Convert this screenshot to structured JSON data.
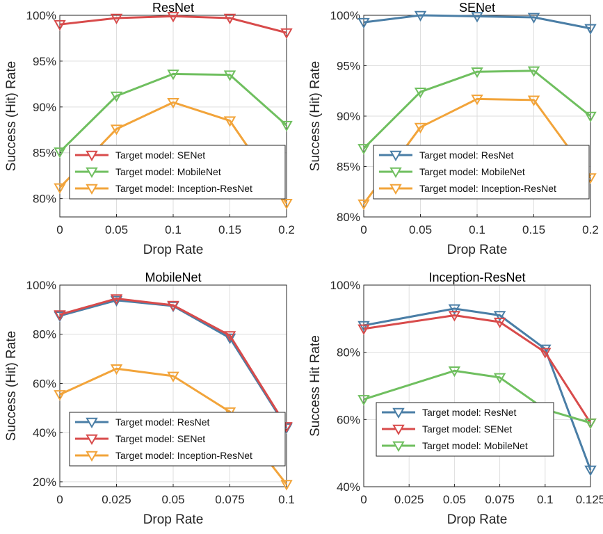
{
  "colors": {
    "resnet": "#4a7ea6",
    "senet": "#d84b4b",
    "mobilenet": "#6fbf5f",
    "inception": "#f2a43a"
  },
  "chart_data": [
    {
      "type": "line",
      "title": "ResNet",
      "xlabel": "Drop Rate",
      "ylabel": "Success (Hit) Rate",
      "x": [
        0,
        0.05,
        0.1,
        0.15,
        0.2
      ],
      "x_ticks": [
        "0",
        "0.05",
        "0.1",
        "0.15",
        "0.2"
      ],
      "xlim": [
        0,
        0.2
      ],
      "ylim": [
        78,
        100
      ],
      "y_ticks": [
        80,
        85,
        90,
        95,
        100
      ],
      "y_tick_labels": [
        "80%",
        "85%",
        "90%",
        "95%",
        "100%"
      ],
      "legend_loc": "lower-right",
      "series": [
        {
          "name": "Target model: SENet",
          "color_key": "senet",
          "values": [
            99.0,
            99.7,
            99.9,
            99.7,
            98.1
          ]
        },
        {
          "name": "Target model: MobileNet",
          "color_key": "mobilenet",
          "values": [
            85.1,
            91.2,
            93.6,
            93.5,
            88.0
          ]
        },
        {
          "name": "Target model: Inception-ResNet",
          "color_key": "inception",
          "values": [
            81.2,
            87.6,
            90.5,
            88.5,
            79.5
          ]
        }
      ]
    },
    {
      "type": "line",
      "title": "SENet",
      "xlabel": "Drop Rate",
      "ylabel": "Success (Hit) Rate",
      "x": [
        0,
        0.05,
        0.1,
        0.15,
        0.2
      ],
      "x_ticks": [
        "0",
        "0.05",
        "0.1",
        "0.15",
        "0.2"
      ],
      "xlim": [
        0,
        0.2
      ],
      "ylim": [
        80,
        100
      ],
      "y_ticks": [
        80,
        85,
        90,
        95,
        100
      ],
      "y_tick_labels": [
        "80%",
        "85%",
        "90%",
        "95%",
        "100%"
      ],
      "legend_loc": "lower-right",
      "series": [
        {
          "name": "Target model: ResNet",
          "color_key": "resnet",
          "values": [
            99.3,
            100.0,
            99.9,
            99.8,
            98.7
          ]
        },
        {
          "name": "Target model: MobileNet",
          "color_key": "mobilenet",
          "values": [
            86.8,
            92.4,
            94.4,
            94.5,
            90.0
          ]
        },
        {
          "name": "Target model: Inception-ResNet",
          "color_key": "inception",
          "values": [
            81.3,
            88.9,
            91.7,
            91.6,
            83.9
          ]
        }
      ]
    },
    {
      "type": "line",
      "title": "MobileNet",
      "xlabel": "Drop Rate",
      "ylabel": "Success (Hit) Rate",
      "x": [
        0,
        0.025,
        0.05,
        0.075,
        0.1
      ],
      "x_ticks": [
        "0",
        "0.025",
        "0.05",
        "0.075",
        "0.1"
      ],
      "xlim": [
        0,
        0.1
      ],
      "ylim": [
        18,
        100
      ],
      "y_ticks": [
        20,
        40,
        60,
        80,
        100
      ],
      "y_tick_labels": [
        "20%",
        "40%",
        "60%",
        "80%",
        "100%"
      ],
      "legend_loc": "lower-right",
      "series": [
        {
          "name": "Target model: ResNet",
          "color_key": "resnet",
          "values": [
            87.5,
            93.8,
            91.5,
            78.5,
            42.0
          ]
        },
        {
          "name": "Target model: SENet",
          "color_key": "senet",
          "values": [
            88.0,
            94.5,
            91.8,
            79.5,
            42.5
          ]
        },
        {
          "name": "Target model: Inception-ResNet",
          "color_key": "inception",
          "values": [
            55.5,
            66.0,
            63.0,
            48.5,
            19.0
          ]
        }
      ]
    },
    {
      "type": "line",
      "title": "Inception-ResNet",
      "xlabel": "Drop Rate",
      "ylabel": "Success Hit Rate",
      "x": [
        0,
        0.05,
        0.075,
        0.1,
        0.125
      ],
      "x_ticks": [
        "0",
        "0.025",
        "0.05",
        "0.075",
        "0.1",
        "0.125"
      ],
      "x_tick_values": [
        0,
        0.025,
        0.05,
        0.075,
        0.1,
        0.125
      ],
      "xlim": [
        0,
        0.125
      ],
      "ylim": [
        40,
        100
      ],
      "y_ticks": [
        40,
        60,
        80,
        100
      ],
      "y_tick_labels": [
        "40%",
        "60%",
        "80%",
        "100%"
      ],
      "legend_loc": "lower-left",
      "series": [
        {
          "name": "Target model: ResNet",
          "color_key": "resnet",
          "values": [
            88.0,
            93.0,
            91.0,
            81.0,
            45.0
          ]
        },
        {
          "name": "Target model: SENet",
          "color_key": "senet",
          "values": [
            87.0,
            91.0,
            89.0,
            80.0,
            59.0
          ]
        },
        {
          "name": "Target model: MobileNet",
          "color_key": "mobilenet",
          "values": [
            66.0,
            74.5,
            72.5,
            63.0,
            59.0
          ]
        }
      ]
    }
  ]
}
